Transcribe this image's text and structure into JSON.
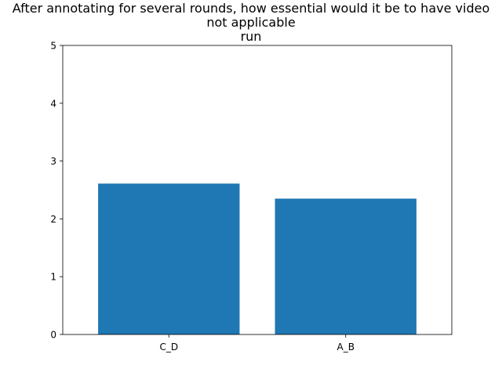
{
  "chart_data": {
    "type": "bar",
    "title_lines": [
      "After annotating for several rounds, how essential would it be to have video",
      "not applicable",
      "run"
    ],
    "xlabel": "",
    "ylabel": "",
    "categories": [
      "C_D",
      "A_B"
    ],
    "values": [
      2.61,
      2.35
    ],
    "ylim": [
      0,
      5
    ],
    "yticks": [
      "0",
      "1",
      "2",
      "3",
      "4",
      "5"
    ],
    "bar_color": "#1f77b4",
    "grid": false,
    "legend": "none"
  }
}
